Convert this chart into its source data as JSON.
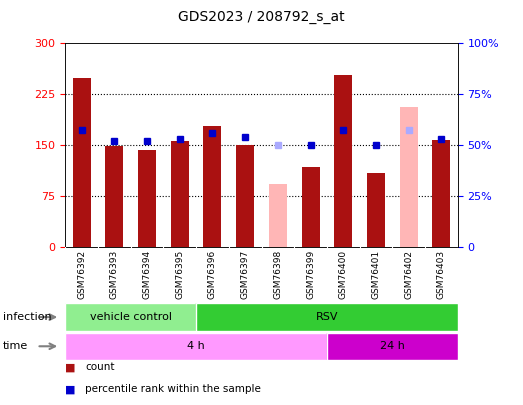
{
  "title": "GDS2023 / 208792_s_at",
  "samples": [
    "GSM76392",
    "GSM76393",
    "GSM76394",
    "GSM76395",
    "GSM76396",
    "GSM76397",
    "GSM76398",
    "GSM76399",
    "GSM76400",
    "GSM76401",
    "GSM76402",
    "GSM76403"
  ],
  "counts": [
    248,
    148,
    143,
    155,
    178,
    149,
    null,
    118,
    252,
    108,
    null,
    157
  ],
  "absent_values": [
    null,
    null,
    null,
    null,
    null,
    null,
    93,
    null,
    null,
    null,
    205,
    null
  ],
  "rank_present": [
    57,
    52,
    52,
    53,
    56,
    54,
    null,
    50,
    57,
    50,
    null,
    53
  ],
  "rank_absent": [
    null,
    null,
    null,
    null,
    null,
    null,
    50,
    null,
    null,
    null,
    57,
    null
  ],
  "ylim_left": [
    0,
    300
  ],
  "ylim_right": [
    0,
    100
  ],
  "yticks_left": [
    0,
    75,
    150,
    225,
    300
  ],
  "yticks_right": [
    0,
    25,
    50,
    75,
    100
  ],
  "ytick_labels_left": [
    "0",
    "75",
    "150",
    "225",
    "300"
  ],
  "ytick_labels_right": [
    "0",
    "25%",
    "50%",
    "75%",
    "100%"
  ],
  "infection_groups": [
    {
      "label": "vehicle control",
      "start": 0,
      "end": 4,
      "color": "#90EE90"
    },
    {
      "label": "RSV",
      "start": 4,
      "end": 12,
      "color": "#33CC33"
    }
  ],
  "time_groups": [
    {
      "label": "4 h",
      "start": 0,
      "end": 8,
      "color": "#FF99FF"
    },
    {
      "label": "24 h",
      "start": 8,
      "end": 12,
      "color": "#CC00CC"
    }
  ],
  "bar_color_present": "#AA1111",
  "bar_color_absent": "#FFB6B6",
  "dot_color_present": "#0000CC",
  "dot_color_absent": "#AAAAFF",
  "bg_color": "#DDDDDD",
  "plot_bg": "#FFFFFF"
}
